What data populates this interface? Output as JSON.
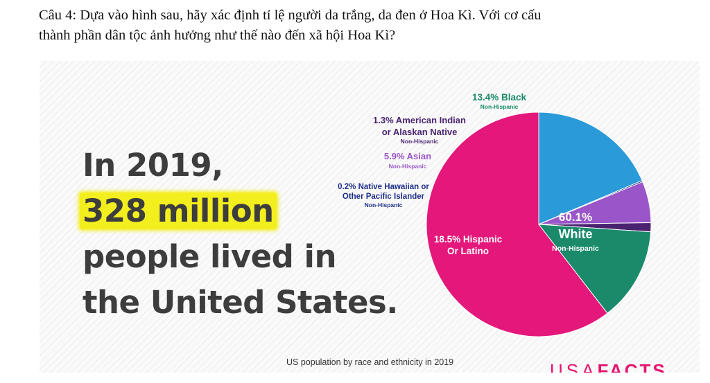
{
  "question": {
    "line1": "Câu 4: Dựa vào hình sau, hãy xác định tỉ lệ người da trắng, da đen ở Hoa Kì. Với cơ cấu",
    "line2": "thành phần dân tộc ảnh hưởng như thế nào đến xã hội Hoa Kì?"
  },
  "headline": {
    "line1": "In 2019,",
    "line2": "328 million",
    "line3": "people lived in",
    "line4": "the United States."
  },
  "caption": "US population by race and ethnicity in 2019",
  "logo": {
    "light": "USA",
    "bold": "FACTS"
  },
  "colors": {
    "highlight": "#f3ee1e",
    "headline_text": "#3d3d3d",
    "logo": "#e4176f"
  },
  "chart_data": {
    "type": "pie",
    "slices": [
      {
        "label": "White",
        "value": 60.1,
        "percent_label": "60.1%",
        "sub_label": "Non-Hispanic",
        "color": "#e4177a",
        "label_color": "#ffffff"
      },
      {
        "label": "Hispanic Or Latino",
        "value": 18.5,
        "percent_label": "18.5%",
        "sub_label": "",
        "color": "#2a9ad8",
        "label_color": "#ffffff"
      },
      {
        "label": "Native Hawaiian or Other Pacific Islander",
        "value": 0.2,
        "percent_label": "0.2%",
        "sub_label": "Non-Hispanic",
        "color": "#1d2f8a",
        "label_color": "#1d2f8a"
      },
      {
        "label": "Asian",
        "value": 5.9,
        "percent_label": "5.9%",
        "sub_label": "Non-Hispanic",
        "color": "#9a55c9",
        "label_color": "#9a55c9"
      },
      {
        "label": "American Indian or Alaskan Native",
        "value": 1.3,
        "percent_label": "1.3%",
        "sub_label": "Non-Hispanic",
        "color": "#4a2370",
        "label_color": "#4a2370"
      },
      {
        "label": "Black",
        "value": 13.4,
        "percent_label": "13.4%",
        "sub_label": "Non-Hispanic",
        "color": "#1a8a6a",
        "label_color": "#1a8a6a"
      }
    ]
  }
}
